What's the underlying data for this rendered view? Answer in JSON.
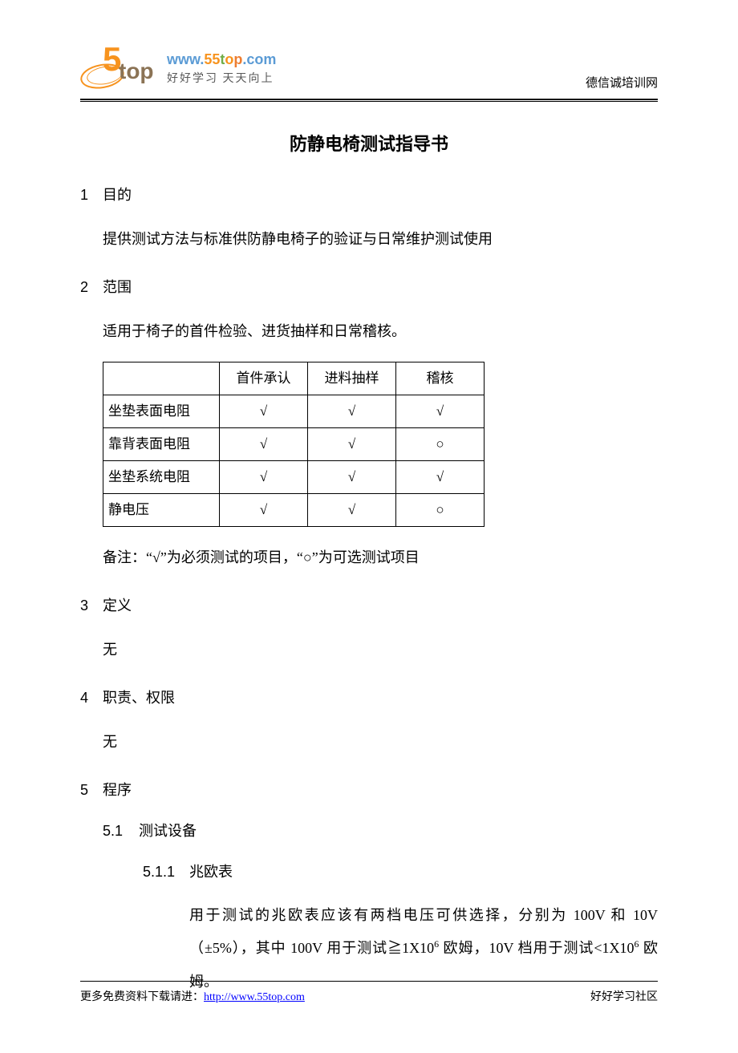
{
  "header": {
    "logo_url_parts": {
      "www": "www.",
      "five": "55",
      "t": "t",
      "o": "o",
      "p": "p",
      "dotcom": ".com"
    },
    "slogan": "好好学习  天天向上",
    "right_text": "德信诚培训网"
  },
  "title": "防静电椅测试指导书",
  "sections": {
    "s1": {
      "num": "1",
      "heading": "目的",
      "body": "提供测试方法与标准供防静电椅子的验证与日常维护测试使用"
    },
    "s2": {
      "num": "2",
      "heading": "范围",
      "body": "适用于椅子的首件检验、进货抽样和日常稽核。"
    },
    "s3": {
      "num": "3",
      "heading": "定义",
      "body": "无"
    },
    "s4": {
      "num": "4",
      "heading": "职责、权限",
      "body": "无"
    },
    "s5": {
      "num": "5",
      "heading": "程序"
    }
  },
  "table": {
    "headers": [
      "",
      "首件承认",
      "进料抽样",
      "稽核"
    ],
    "rows": [
      {
        "label": "坐垫表面电阻",
        "c1": "√",
        "c2": "√",
        "c3": "√"
      },
      {
        "label": "靠背表面电阻",
        "c1": "√",
        "c2": "√",
        "c3": "○"
      },
      {
        "label": "坐垫系统电阻",
        "c1": "√",
        "c2": "√",
        "c3": "√"
      },
      {
        "label": "静电压",
        "c1": "√",
        "c2": "√",
        "c3": "○"
      }
    ],
    "note": "备注：“√”为必须测试的项目，“○”为可选测试项目"
  },
  "subsection": {
    "s51": {
      "num": "5.1",
      "heading": "测试设备"
    },
    "s511": {
      "num": "5.1.1",
      "heading": "兆欧表",
      "body_p1": "用于测试的兆欧表应该有两档电压可供选择，分别为 100V 和 10V（±5%），其中 100V 用于测试≧1X10",
      "body_sup1": "6",
      "body_p2": " 欧姆，10V 档用于测试<1X10",
      "body_sup2": "6",
      "body_p3": " 欧姆。"
    }
  },
  "footer": {
    "left_prefix": "更多免费资料下载请进：",
    "link": "http://www.55top.com",
    "right": "好好学习社区"
  }
}
